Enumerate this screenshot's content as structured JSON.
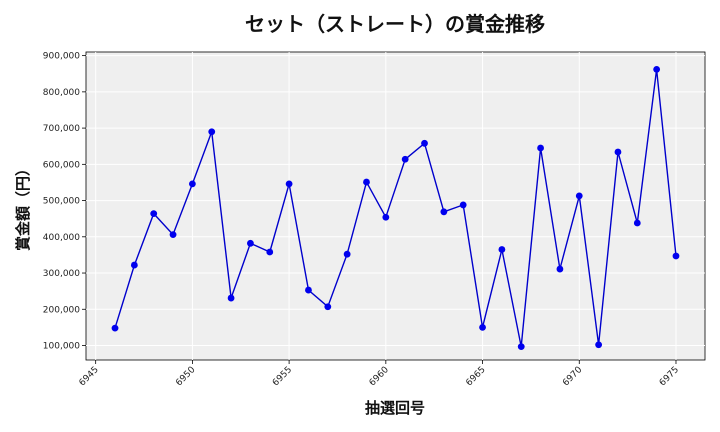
{
  "chart_data": {
    "type": "line",
    "title": "セット（ストレート）の賞金推移",
    "xlabel": "抽選回号",
    "ylabel": "賞金額（円）",
    "xlim": [
      6944.5,
      6976.5
    ],
    "ylim": [
      60000,
      910000
    ],
    "x_ticks": [
      6945,
      6950,
      6955,
      6960,
      6965,
      6970,
      6975
    ],
    "y_ticks": [
      100000,
      200000,
      300000,
      400000,
      500000,
      600000,
      700000,
      800000,
      900000
    ],
    "y_tick_labels": [
      "100,000",
      "200,000",
      "300,000",
      "400,000",
      "500,000",
      "600,000",
      "700,000",
      "800,000",
      "900,000"
    ],
    "grid": true,
    "line_color": "#0000cc",
    "marker_color": "#0000ee",
    "plot_bg": "#efefef",
    "x": [
      6946,
      6947,
      6948,
      6949,
      6950,
      6951,
      6952,
      6953,
      6954,
      6955,
      6956,
      6957,
      6958,
      6959,
      6960,
      6961,
      6962,
      6963,
      6964,
      6965,
      6966,
      6967,
      6968,
      6969,
      6970,
      6971,
      6972,
      6973,
      6974,
      6975
    ],
    "values": [
      148000,
      322000,
      464000,
      406000,
      546000,
      690000,
      231000,
      382000,
      358000,
      546000,
      253000,
      207000,
      352000,
      551000,
      454000,
      614000,
      658000,
      469000,
      488000,
      150000,
      365000,
      97000,
      645000,
      311000,
      513000,
      102000,
      634000,
      438000,
      862000,
      347000
    ]
  }
}
